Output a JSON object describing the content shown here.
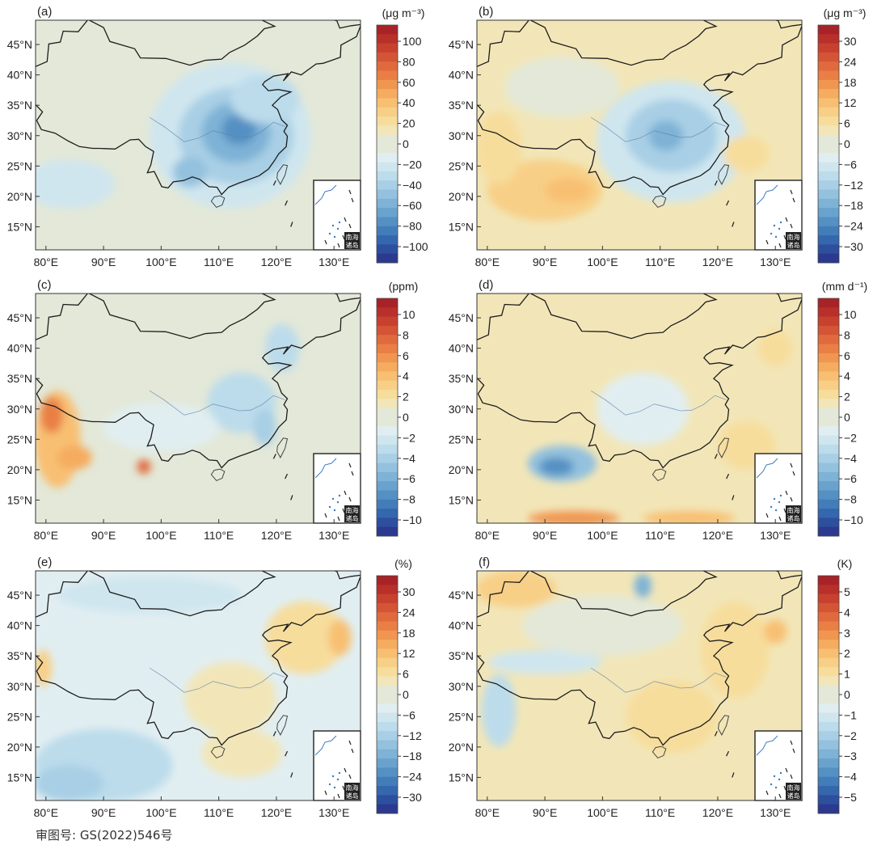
{
  "figure": {
    "review_number": "审图号: GS(2022)546号",
    "inset_label": [
      "南海",
      "诸岛"
    ]
  },
  "axes": {
    "lat_labels": [
      "45°N",
      "40°N",
      "35°N",
      "30°N",
      "25°N",
      "20°N",
      "15°N"
    ],
    "lon_labels": [
      "80°E",
      "90°E",
      "100°E",
      "110°E",
      "120°E",
      "130°E"
    ]
  },
  "palette": {
    "negative": [
      "#e1eef1",
      "#cfe6ef",
      "#bcdceb",
      "#a8cfe5",
      "#93c1de",
      "#7eb2d6",
      "#69a2cd",
      "#5590c3",
      "#437db9",
      "#3467ad",
      "#2d4f9e",
      "#2b3a8f"
    ],
    "neutral": "#e3e8d8",
    "positive": [
      "#f2e6b8",
      "#f7dd9c",
      "#f8cf86",
      "#f8bf72",
      "#f5ac5f",
      "#f09651",
      "#e97f45",
      "#e06a3d",
      "#d45536",
      "#c8412f",
      "#b92f2a",
      "#a82327"
    ]
  },
  "panels": [
    {
      "id": "a",
      "label": "(a)",
      "unit": "(μg m⁻³)",
      "colorbar_ticks": [
        "100",
        "80",
        "60",
        "40",
        "20",
        "0",
        "−20",
        "−40",
        "−60",
        "−80",
        "−100"
      ],
      "background_level": 0,
      "patches": [
        {
          "lon": 112,
          "lat": 30,
          "rx": 14,
          "ry": 12,
          "level": -2
        },
        {
          "lon": 113,
          "lat": 30,
          "rx": 10,
          "ry": 8,
          "level": -4
        },
        {
          "lon": 113,
          "lat": 30.5,
          "rx": 6,
          "ry": 5,
          "level": -6
        },
        {
          "lon": 113.5,
          "lat": 31,
          "rx": 3,
          "ry": 2.5,
          "level": -8
        },
        {
          "lon": 105,
          "lat": 24,
          "rx": 3,
          "ry": 2.5,
          "level": -5
        },
        {
          "lon": 84,
          "lat": 22,
          "rx": 8,
          "ry": 4,
          "level": -2
        },
        {
          "lon": 118,
          "lat": 36,
          "rx": 6,
          "ry": 4,
          "level": -3
        }
      ]
    },
    {
      "id": "b",
      "label": "(b)",
      "unit": "(μg m⁻³)",
      "colorbar_ticks": [
        "30",
        "24",
        "18",
        "12",
        "6",
        "0",
        "−6",
        "−12",
        "−18",
        "−24",
        "−30"
      ],
      "background_level": 1,
      "patches": [
        {
          "lon": 112,
          "lat": 29,
          "rx": 13,
          "ry": 10,
          "level": -2
        },
        {
          "lon": 112,
          "lat": 30,
          "rx": 8,
          "ry": 6,
          "level": -4
        },
        {
          "lon": 111,
          "lat": 30,
          "rx": 3,
          "ry": 2.5,
          "level": -6
        },
        {
          "lon": 90,
          "lat": 21,
          "rx": 10,
          "ry": 5,
          "level": 3
        },
        {
          "lon": 94,
          "lat": 21,
          "rx": 4,
          "ry": 2,
          "level": 4
        },
        {
          "lon": 82,
          "lat": 28,
          "rx": 4,
          "ry": 6,
          "level": 2
        },
        {
          "lon": 93,
          "lat": 38,
          "rx": 10,
          "ry": 5,
          "level": 0
        },
        {
          "lon": 125,
          "lat": 27,
          "rx": 4,
          "ry": 3,
          "level": 2
        }
      ]
    },
    {
      "id": "c",
      "label": "(c)",
      "unit": "(ppm)",
      "colorbar_ticks": [
        "10",
        "8",
        "6",
        "4",
        "2",
        "0",
        "−2",
        "−4",
        "−6",
        "−8",
        "−10"
      ],
      "background_level": 0,
      "patches": [
        {
          "lon": 82,
          "lat": 25,
          "rx": 4,
          "ry": 8,
          "level": 4
        },
        {
          "lon": 81,
          "lat": 29,
          "rx": 2,
          "ry": 3,
          "level": 7
        },
        {
          "lon": 85,
          "lat": 22,
          "rx": 3,
          "ry": 2,
          "level": 5
        },
        {
          "lon": 97,
          "lat": 20.5,
          "rx": 1.2,
          "ry": 1.2,
          "level": 8
        },
        {
          "lon": 114,
          "lat": 31,
          "rx": 6,
          "ry": 5,
          "level": -3
        },
        {
          "lon": 118,
          "lat": 27,
          "rx": 2,
          "ry": 3,
          "level": -4
        },
        {
          "lon": 121,
          "lat": 40,
          "rx": 3,
          "ry": 4,
          "level": -3
        },
        {
          "lon": 100,
          "lat": 27,
          "rx": 10,
          "ry": 4,
          "level": -1
        }
      ]
    },
    {
      "id": "d",
      "label": "(d)",
      "unit": "(mm d⁻¹)",
      "colorbar_ticks": [
        "10",
        "8",
        "6",
        "4",
        "2",
        "0",
        "−2",
        "−4",
        "−6",
        "−8",
        "−10"
      ],
      "background_level": 1,
      "patches": [
        {
          "lon": 93,
          "lat": 21,
          "rx": 6,
          "ry": 3,
          "level": -5
        },
        {
          "lon": 92,
          "lat": 20.5,
          "rx": 3,
          "ry": 1.5,
          "level": -8
        },
        {
          "lon": 107,
          "lat": 30,
          "rx": 8,
          "ry": 6,
          "level": -1
        },
        {
          "lon": 95,
          "lat": 12,
          "rx": 8,
          "ry": 1.2,
          "level": 6
        },
        {
          "lon": 115,
          "lat": 12,
          "rx": 8,
          "ry": 1.2,
          "level": 4
        },
        {
          "lon": 125,
          "lat": 24,
          "rx": 5,
          "ry": 4,
          "level": 2
        },
        {
          "lon": 130,
          "lat": 40,
          "rx": 3,
          "ry": 3,
          "level": 2
        }
      ]
    },
    {
      "id": "e",
      "label": "(e)",
      "unit": "(%)",
      "colorbar_ticks": [
        "30",
        "24",
        "18",
        "12",
        "6",
        "0",
        "−6",
        "−12",
        "−18",
        "−24",
        "−30"
      ],
      "background_level": -1,
      "patches": [
        {
          "lon": 90,
          "lat": 17,
          "rx": 12,
          "ry": 6,
          "level": -3
        },
        {
          "lon": 84,
          "lat": 14,
          "rx": 6,
          "ry": 3,
          "level": -4
        },
        {
          "lon": 98,
          "lat": 45,
          "rx": 16,
          "ry": 3,
          "level": -2
        },
        {
          "lon": 125,
          "lat": 38,
          "rx": 7,
          "ry": 6,
          "level": 2
        },
        {
          "lon": 131,
          "lat": 38,
          "rx": 2,
          "ry": 3,
          "level": 4
        },
        {
          "lon": 112,
          "lat": 28,
          "rx": 8,
          "ry": 6,
          "level": 1
        },
        {
          "lon": 114,
          "lat": 19,
          "rx": 7,
          "ry": 4,
          "level": 1
        },
        {
          "lon": 79.5,
          "lat": 33,
          "rx": 1.5,
          "ry": 3,
          "level": 3
        }
      ]
    },
    {
      "id": "f",
      "label": "(f)",
      "unit": "(K)",
      "colorbar_ticks": [
        "5",
        "4",
        "3",
        "2",
        "1",
        "0",
        "−1",
        "−2",
        "−3",
        "−4",
        "−5"
      ],
      "background_level": 1,
      "patches": [
        {
          "lon": 85,
          "lat": 46,
          "rx": 7,
          "ry": 3,
          "level": 3
        },
        {
          "lon": 107,
          "lat": 46.5,
          "rx": 1.5,
          "ry": 2,
          "level": -6
        },
        {
          "lon": 90,
          "lat": 34,
          "rx": 10,
          "ry": 2,
          "level": -2
        },
        {
          "lon": 82,
          "lat": 26,
          "rx": 3,
          "ry": 6,
          "level": -3
        },
        {
          "lon": 123,
          "lat": 36,
          "rx": 6,
          "ry": 8,
          "level": 2
        },
        {
          "lon": 130,
          "lat": 39,
          "rx": 2,
          "ry": 2,
          "level": 4
        },
        {
          "lon": 112,
          "lat": 25,
          "rx": 8,
          "ry": 6,
          "level": 2
        },
        {
          "lon": 100,
          "lat": 40,
          "rx": 14,
          "ry": 5,
          "level": 0
        }
      ]
    }
  ]
}
